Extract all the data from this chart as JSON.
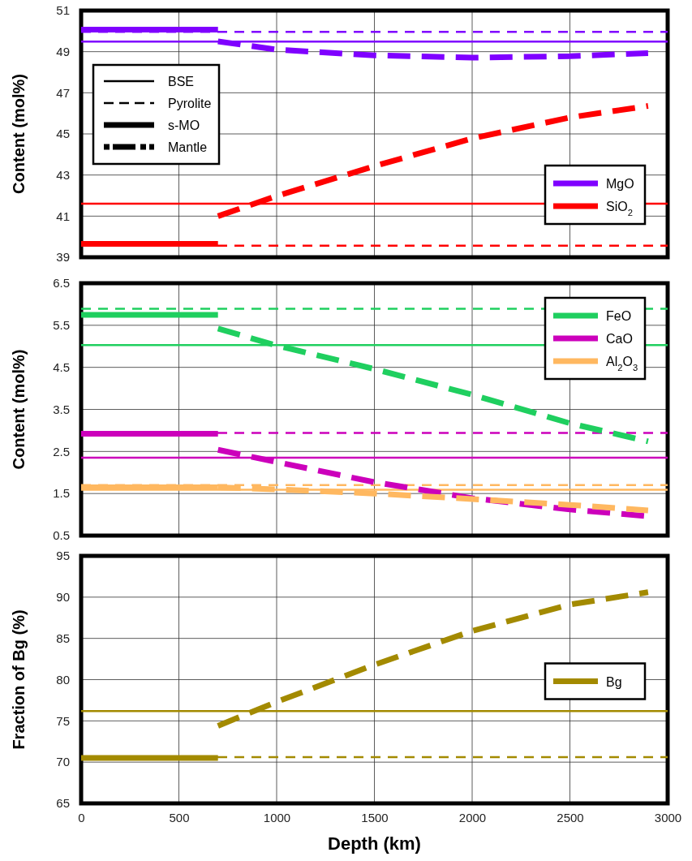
{
  "chart_data": [
    {
      "type": "line",
      "ylabel": "Content (mol%)",
      "xlim": [
        0,
        3000
      ],
      "xticks": [
        0,
        500,
        1000,
        1500,
        2000,
        2500,
        3000
      ],
      "ylim": [
        39,
        51
      ],
      "yticks": [
        39,
        41,
        43,
        45,
        47,
        49,
        51
      ],
      "grid": true,
      "tick_labels": "y",
      "legend": "bottom right",
      "annotations": [
        "BSE",
        "Pyrolite",
        "s-MO",
        "Mantle"
      ],
      "ref_lines": [
        {
          "axis": "y",
          "value": 49.49,
          "color": "#7f00ff",
          "line_style": "solid"
        },
        {
          "axis": "y",
          "value": 49.96,
          "color": "#7f00ff",
          "line_style": "dashed"
        },
        {
          "axis": "y",
          "value": 41.61,
          "color": "#ff0000",
          "line_style": "solid"
        },
        {
          "axis": "y",
          "value": 39.56,
          "color": "#ff0000",
          "line_style": "dashed"
        }
      ],
      "series": [
        {
          "name": "MgO",
          "color": "#7f00ff",
          "line_style": "solid",
          "x": [
            0,
            700
          ],
          "values": [
            50.07,
            50.07
          ]
        },
        {
          "color": "#7f00ff",
          "line_style": "dashed",
          "x": [
            700,
            1000,
            1500,
            2000,
            2500,
            2900
          ],
          "values": [
            49.5,
            49.1,
            48.82,
            48.71,
            48.78,
            48.93
          ]
        },
        {
          "name": "SiO$_{2}$",
          "color": "#ff0000",
          "line_style": "solid",
          "x": [
            0,
            700
          ],
          "values": [
            39.65,
            39.65
          ]
        },
        {
          "color": "#ff0000",
          "line_style": "dashed",
          "x": [
            700,
            1000,
            1500,
            2000,
            2500,
            2900
          ],
          "values": [
            41.0,
            41.98,
            43.43,
            44.78,
            45.8,
            46.36
          ]
        }
      ]
    },
    {
      "type": "line",
      "ylabel": "Content (mol%)",
      "xlim": [
        0,
        3000
      ],
      "xticks": [
        0,
        500,
        1000,
        1500,
        2000,
        2500,
        3000
      ],
      "ylim": [
        0.5,
        6.5
      ],
      "yticks": [
        0.5,
        1.5,
        2.5,
        3.5,
        4.5,
        5.5,
        6.5
      ],
      "grid": true,
      "tick_labels": "y",
      "legend": "top right",
      "ref_lines": [
        {
          "axis": "y",
          "value": 5.03,
          "color": "#1fcf5f",
          "line_style": "solid"
        },
        {
          "axis": "y",
          "value": 5.89,
          "color": "#1fcf5f",
          "line_style": "dashed"
        },
        {
          "axis": "y",
          "value": 2.35,
          "color": "#cc00bb",
          "line_style": "solid"
        },
        {
          "axis": "y",
          "value": 2.94,
          "color": "#cc00bb",
          "line_style": "dashed"
        },
        {
          "axis": "y",
          "value": 1.59,
          "color": "#ffb860",
          "line_style": "solid"
        },
        {
          "axis": "y",
          "value": 1.7,
          "color": "#ffb860",
          "line_style": "dashed"
        }
      ],
      "series": [
        {
          "name": "FeO",
          "color": "#1fcf5f",
          "line_style": "solid",
          "x": [
            0,
            700
          ],
          "values": [
            5.75,
            5.75
          ]
        },
        {
          "color": "#1fcf5f",
          "line_style": "dashed",
          "x": [
            700,
            1000,
            1500,
            2000,
            2500,
            2900
          ],
          "values": [
            5.42,
            5.02,
            4.46,
            3.85,
            3.17,
            2.74
          ]
        },
        {
          "name": "CaO",
          "color": "#cc00bb",
          "line_style": "solid",
          "x": [
            0,
            700
          ],
          "values": [
            2.92,
            2.92
          ]
        },
        {
          "color": "#cc00bb",
          "line_style": "dashed",
          "x": [
            700,
            1000,
            1500,
            2000,
            2500,
            2900
          ],
          "values": [
            2.54,
            2.25,
            1.77,
            1.39,
            1.12,
            0.96
          ]
        },
        {
          "name": "Al$_{2}$O$_{3}$",
          "color": "#ffb860",
          "line_style": "solid",
          "x": [
            0,
            700
          ],
          "values": [
            1.65,
            1.65
          ]
        },
        {
          "color": "#ffb860",
          "line_style": "dashed",
          "x": [
            700,
            1000,
            1500,
            2000,
            2500,
            2900
          ],
          "values": [
            1.65,
            1.6,
            1.5,
            1.37,
            1.23,
            1.1
          ]
        }
      ]
    },
    {
      "type": "line",
      "xlabel": "Depth (km)",
      "ylabel": "Fraction of Bg (%)",
      "xlim": [
        0,
        3000
      ],
      "xticks": [
        0,
        500,
        1000,
        1500,
        2000,
        2500,
        3000
      ],
      "ylim": [
        65,
        95
      ],
      "yticks": [
        65,
        70,
        75,
        80,
        85,
        90,
        95
      ],
      "grid": true,
      "legend": "right",
      "ref_lines": [
        {
          "axis": "y",
          "value": 76.2,
          "color": "#a38a00",
          "line_style": "solid"
        },
        {
          "axis": "y",
          "value": 70.6,
          "color": "#a38a00",
          "line_style": "dashed"
        }
      ],
      "series": [
        {
          "name": "Bg",
          "color": "#a38a00",
          "line_style": "solid",
          "x": [
            0,
            700
          ],
          "values": [
            70.5,
            70.5
          ]
        },
        {
          "color": "#a38a00",
          "line_style": "dashed",
          "x": [
            700,
            1000,
            1500,
            2000,
            2500,
            2900
          ],
          "values": [
            74.4,
            77.3,
            81.8,
            85.9,
            89.1,
            90.6
          ]
        }
      ]
    }
  ]
}
